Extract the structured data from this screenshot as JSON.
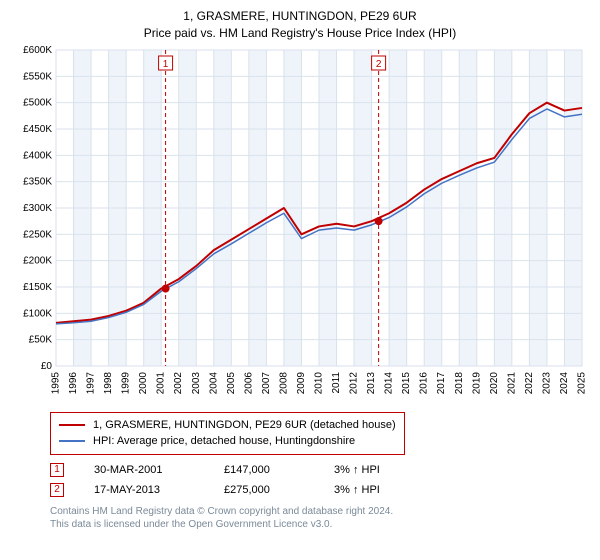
{
  "title_line1": "1, GRASMERE, HUNTINGDON, PE29 6UR",
  "title_line2": "Price paid vs. HM Land Registry's House Price Index (HPI)",
  "chart": {
    "type": "line",
    "background_color": "#ffffff",
    "grid_color": "#d9e2ec",
    "alt_band_color": "#eef4fa",
    "axis_text_color": "#000000",
    "y": {
      "label_prefix": "£",
      "label_suffix": "K",
      "min": 0,
      "max": 600,
      "step": 50,
      "ticks": [
        0,
        50,
        100,
        150,
        200,
        250,
        300,
        350,
        400,
        450,
        500,
        550,
        600
      ],
      "fontsize": 10
    },
    "x": {
      "years": [
        1995,
        1996,
        1997,
        1998,
        1999,
        2000,
        2001,
        2002,
        2003,
        2004,
        2005,
        2006,
        2007,
        2008,
        2009,
        2010,
        2011,
        2012,
        2013,
        2014,
        2015,
        2016,
        2017,
        2018,
        2019,
        2020,
        2021,
        2022,
        2023,
        2024,
        2025
      ],
      "fontsize": 10,
      "rotation": -90
    },
    "series": [
      {
        "name": "property",
        "label": "1, GRASMERE, HUNTINGDON, PE29 6UR (detached house)",
        "color": "#c00000",
        "line_width": 2,
        "values": [
          82,
          85,
          88,
          95,
          105,
          120,
          147,
          165,
          190,
          220,
          240,
          260,
          280,
          300,
          250,
          265,
          270,
          265,
          275,
          290,
          310,
          335,
          355,
          370,
          385,
          395,
          440,
          480,
          500,
          485,
          490
        ]
      },
      {
        "name": "hpi",
        "label": "HPI: Average price, detached house, Huntingdonshire",
        "color": "#4472c4",
        "line_width": 1.5,
        "values": [
          80,
          82,
          85,
          92,
          102,
          117,
          142,
          160,
          185,
          213,
          232,
          252,
          272,
          290,
          242,
          258,
          262,
          258,
          268,
          282,
          302,
          327,
          347,
          362,
          376,
          387,
          430,
          470,
          488,
          473,
          478
        ]
      }
    ],
    "marker_points": [
      {
        "n": "1",
        "year": 2001.25,
        "value": 147
      },
      {
        "n": "2",
        "year": 2013.4,
        "value": 275
      }
    ],
    "marker_point_color": "#c00000",
    "marker_line_color": "#c00000",
    "marker_line_dash": "4,3",
    "marker_badge_border": "#c00000",
    "marker_badge_text_color": "#c00000"
  },
  "legend": {
    "border_color": "#c00000",
    "items": [
      {
        "color": "#c00000",
        "label": "1, GRASMERE, HUNTINGDON, PE29 6UR (detached house)"
      },
      {
        "color": "#4472c4",
        "label": "HPI: Average price, detached house, Huntingdonshire"
      }
    ]
  },
  "markers": [
    {
      "n": "1",
      "date": "30-MAR-2001",
      "price": "£147,000",
      "pct": "3% ↑ HPI"
    },
    {
      "n": "2",
      "date": "17-MAY-2013",
      "price": "£275,000",
      "pct": "3% ↑ HPI"
    }
  ],
  "footer_line1": "Contains HM Land Registry data © Crown copyright and database right 2024.",
  "footer_line2": "This data is licensed under the Open Government Licence v3.0."
}
